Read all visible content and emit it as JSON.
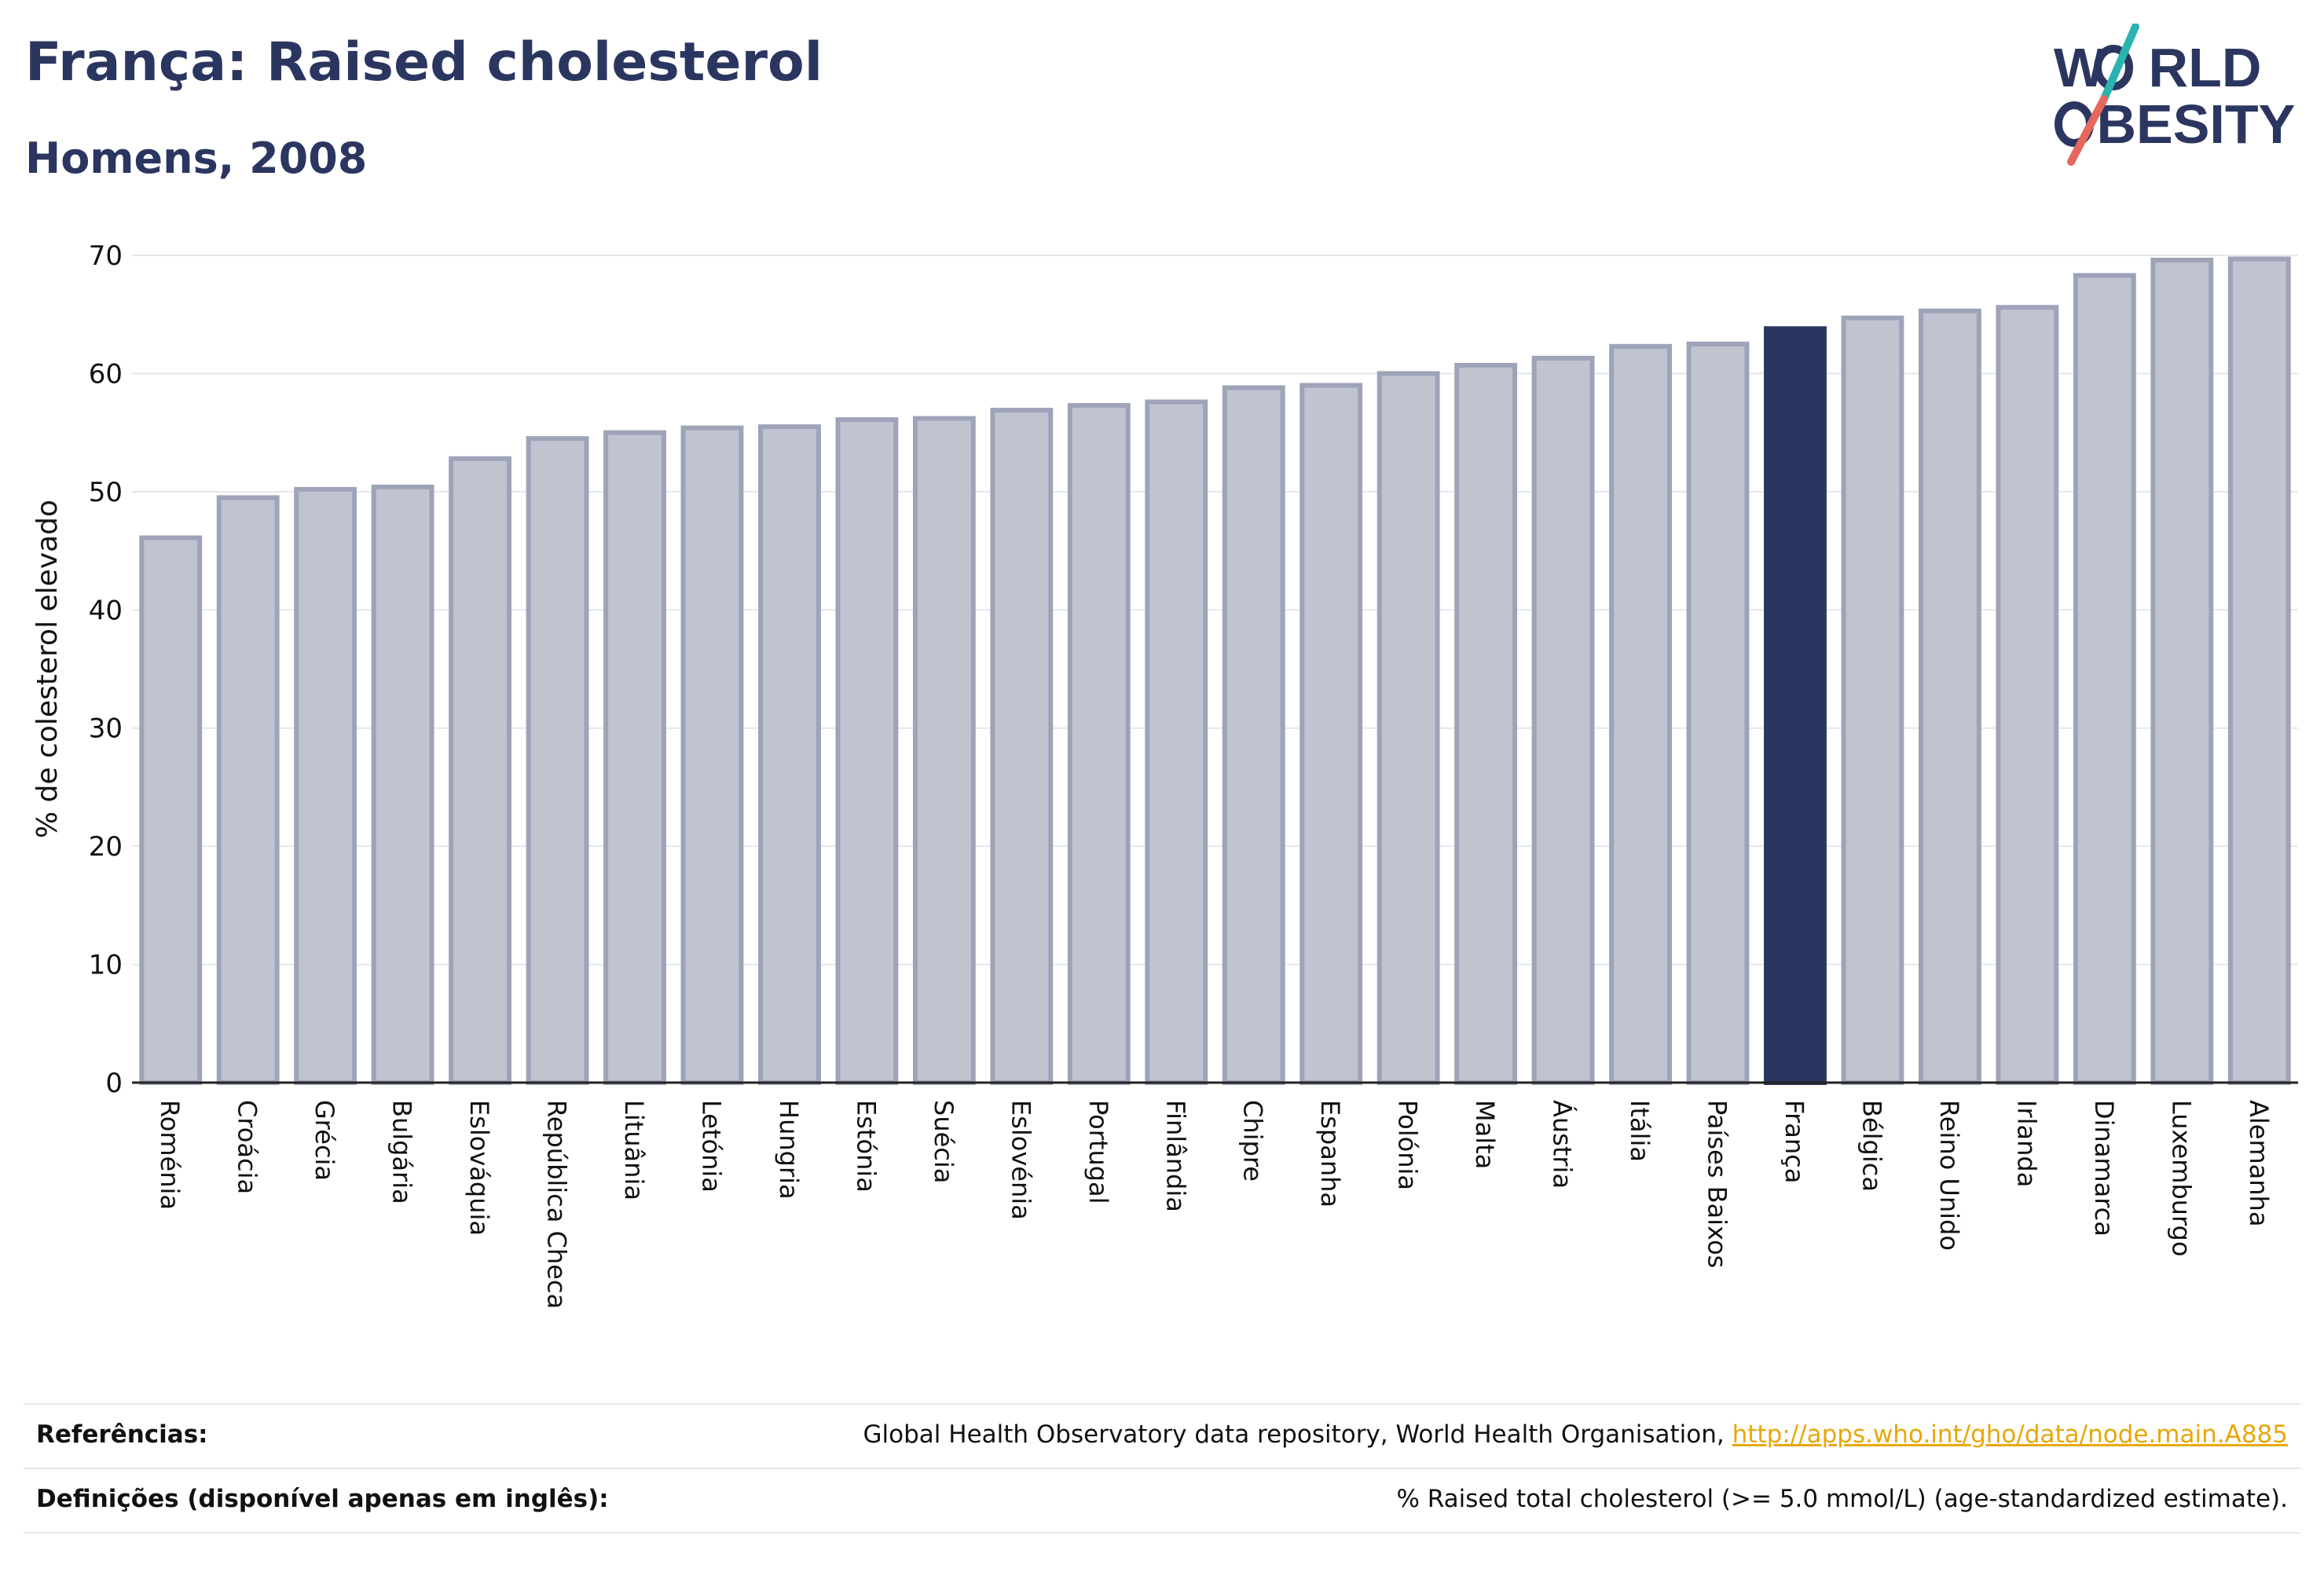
{
  "header": {
    "title": "França: Raised cholesterol",
    "subtitle": "Homens, 2008"
  },
  "logo": {
    "line1_a": "W",
    "line1_b": "RLD",
    "line2_a": "",
    "line2_b": "BESITY",
    "text_color": "#2b3660",
    "slash_teal": "#2ab3b1",
    "slash_coral": "#e4685b"
  },
  "chart_data": {
    "type": "bar",
    "title": "",
    "xlabel": "",
    "ylabel": "% de colesterol elevado",
    "ylim": [
      0,
      70
    ],
    "yticks": [
      0,
      10,
      20,
      30,
      40,
      50,
      60,
      70
    ],
    "grid": true,
    "highlight": "França",
    "colors": {
      "bar": "#c0c3d0",
      "bar_edge": "#9ea3b8",
      "highlight": "#2b3660"
    },
    "categories": [
      "Roménia",
      "Croácia",
      "Grécia",
      "Bulgária",
      "Eslováquia",
      "República Checa",
      "Lituânia",
      "Letónia",
      "Hungria",
      "Estónia",
      "Suécia",
      "Eslovénia",
      "Portugal",
      "Finlândia",
      "Chipre",
      "Espanha",
      "Polónia",
      "Malta",
      "Áustria",
      "Itália",
      "Países Baixos",
      "França",
      "Bélgica",
      "Reino Unido",
      "Irlanda",
      "Dinamarca",
      "Luxemburgo",
      "Alemanha"
    ],
    "values": [
      46.1,
      49.5,
      50.2,
      50.4,
      52.8,
      54.5,
      55.0,
      55.4,
      55.5,
      56.1,
      56.2,
      56.9,
      57.3,
      57.6,
      58.8,
      59.0,
      60.0,
      60.7,
      61.3,
      62.3,
      62.5,
      63.8,
      64.7,
      65.3,
      65.6,
      68.3,
      69.6,
      69.7
    ]
  },
  "footer": {
    "references_label": "Referências:",
    "references_text": "Global Health Observatory data repository, World Health Organisation, ",
    "references_link": "http://apps.who.int/gho/data/node.main.A885",
    "definitions_label": "Definições (disponível apenas em inglês):",
    "definitions_text": "% Raised total cholesterol (>= 5.0 mmol/L) (age-standardized estimate)."
  }
}
